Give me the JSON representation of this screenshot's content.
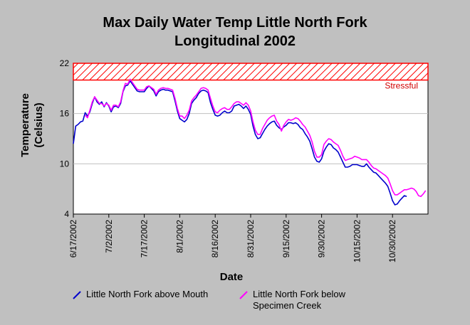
{
  "chart_data": {
    "type": "line",
    "title_lines": [
      "Max Daily Water Temp Little North Fork",
      "Longitudinal 2002"
    ],
    "xlabel": "Date",
    "ylabel_lines": [
      "Temperature",
      "(Celsius)"
    ],
    "ylim": [
      4,
      22
    ],
    "yticks": [
      4,
      10,
      16,
      22
    ],
    "x_start": "6/17/2002",
    "xtick_labels": [
      "6/17/2002",
      "7/2/2002",
      "7/17/2002",
      "8/1/2002",
      "8/16/2002",
      "8/31/2002",
      "9/15/2002",
      "9/30/2002",
      "10/15/2002",
      "10/30/2002"
    ],
    "xtick_day_step": 15,
    "x_days_max": 150,
    "grid": "horizontal",
    "threshold_band": {
      "label": "Stressful",
      "from": 20,
      "to": 22,
      "color": "#ff0000"
    },
    "series": [
      {
        "name": "Little North Fork above Mouth",
        "color": "#0000cc",
        "values": [
          12.4,
          14.5,
          14.7,
          15.0,
          15.1,
          16.1,
          15.7,
          16.2,
          17.2,
          18.0,
          17.4,
          17.1,
          17.4,
          16.8,
          17.3,
          16.9,
          16.2,
          16.8,
          16.9,
          16.7,
          17.2,
          18.6,
          19.3,
          19.4,
          19.9,
          19.5,
          19.1,
          18.7,
          18.6,
          18.6,
          18.6,
          19.0,
          19.3,
          19.0,
          18.7,
          18.1,
          18.6,
          18.8,
          18.9,
          18.8,
          18.8,
          18.7,
          18.6,
          17.5,
          16.3,
          15.4,
          15.2,
          15.0,
          15.3,
          16.0,
          17.2,
          17.6,
          17.9,
          18.4,
          18.7,
          18.8,
          18.7,
          18.5,
          17.3,
          16.5,
          15.8,
          15.7,
          15.8,
          16.1,
          16.3,
          16.1,
          16.1,
          16.3,
          16.9,
          17.0,
          17.1,
          16.9,
          16.6,
          16.9,
          16.5,
          15.9,
          14.5,
          13.5,
          13.0,
          13.1,
          13.6,
          14.1,
          14.5,
          14.8,
          15.0,
          15.1,
          14.6,
          14.3,
          14.1,
          14.4,
          14.6,
          14.9,
          14.9,
          14.8,
          14.9,
          14.7,
          14.3,
          14.1,
          13.6,
          13.2,
          12.7,
          11.8,
          10.8,
          10.3,
          10.2,
          10.6,
          11.5,
          12.0,
          12.4,
          12.3,
          11.9,
          11.7,
          11.4,
          10.8,
          10.2,
          9.6,
          9.6,
          9.7,
          9.9,
          9.9,
          9.9,
          9.8,
          9.7,
          9.7,
          10.0,
          9.6,
          9.3,
          9.0,
          8.9,
          8.6,
          8.3,
          8.0,
          7.7,
          7.3,
          6.5,
          5.6,
          5.1,
          5.2,
          5.6,
          5.9,
          6.2,
          6.1,
          null,
          null,
          null,
          null,
          null,
          null,
          null,
          null
        ]
      },
      {
        "name": "Little North Fork below Specimen Creek",
        "color": "#ff00ff",
        "values": [
          null,
          null,
          null,
          null,
          null,
          15.8,
          15.5,
          16.4,
          17.4,
          18.0,
          17.6,
          17.2,
          17.2,
          16.9,
          17.2,
          17.0,
          16.4,
          17.0,
          17.0,
          16.8,
          17.4,
          18.7,
          19.6,
          19.5,
          20.1,
          19.7,
          19.3,
          18.9,
          18.8,
          18.8,
          18.8,
          19.2,
          19.3,
          19.1,
          18.9,
          18.3,
          18.8,
          19.0,
          19.1,
          19.0,
          19.0,
          18.9,
          18.8,
          17.8,
          16.6,
          15.7,
          15.7,
          15.4,
          15.8,
          16.4,
          17.5,
          17.9,
          18.2,
          18.6,
          19.0,
          19.1,
          19.0,
          18.8,
          17.8,
          16.9,
          16.2,
          16.1,
          16.4,
          16.6,
          16.7,
          16.5,
          16.5,
          16.8,
          17.2,
          17.4,
          17.4,
          17.2,
          17.0,
          17.3,
          17.0,
          16.3,
          15.0,
          14.0,
          13.5,
          13.5,
          14.2,
          14.7,
          15.2,
          15.5,
          15.7,
          15.8,
          15.1,
          14.7,
          13.9,
          14.6,
          15.0,
          15.3,
          15.2,
          15.3,
          15.5,
          15.4,
          15.1,
          14.7,
          14.4,
          13.9,
          13.4,
          12.6,
          11.5,
          10.8,
          10.8,
          11.1,
          12.3,
          12.7,
          13.0,
          12.9,
          12.6,
          12.4,
          12.2,
          11.6,
          10.9,
          10.4,
          10.5,
          10.6,
          10.7,
          10.9,
          10.8,
          10.7,
          10.5,
          10.5,
          10.5,
          10.2,
          9.8,
          9.5,
          9.4,
          9.2,
          9.0,
          8.8,
          8.6,
          8.3,
          7.6,
          6.8,
          6.3,
          6.3,
          6.5,
          6.7,
          6.9,
          6.9,
          7.0,
          7.1,
          7.0,
          6.7,
          6.2,
          6.1,
          6.4,
          6.8
        ]
      }
    ],
    "legend": {
      "placement": "bottom"
    }
  }
}
